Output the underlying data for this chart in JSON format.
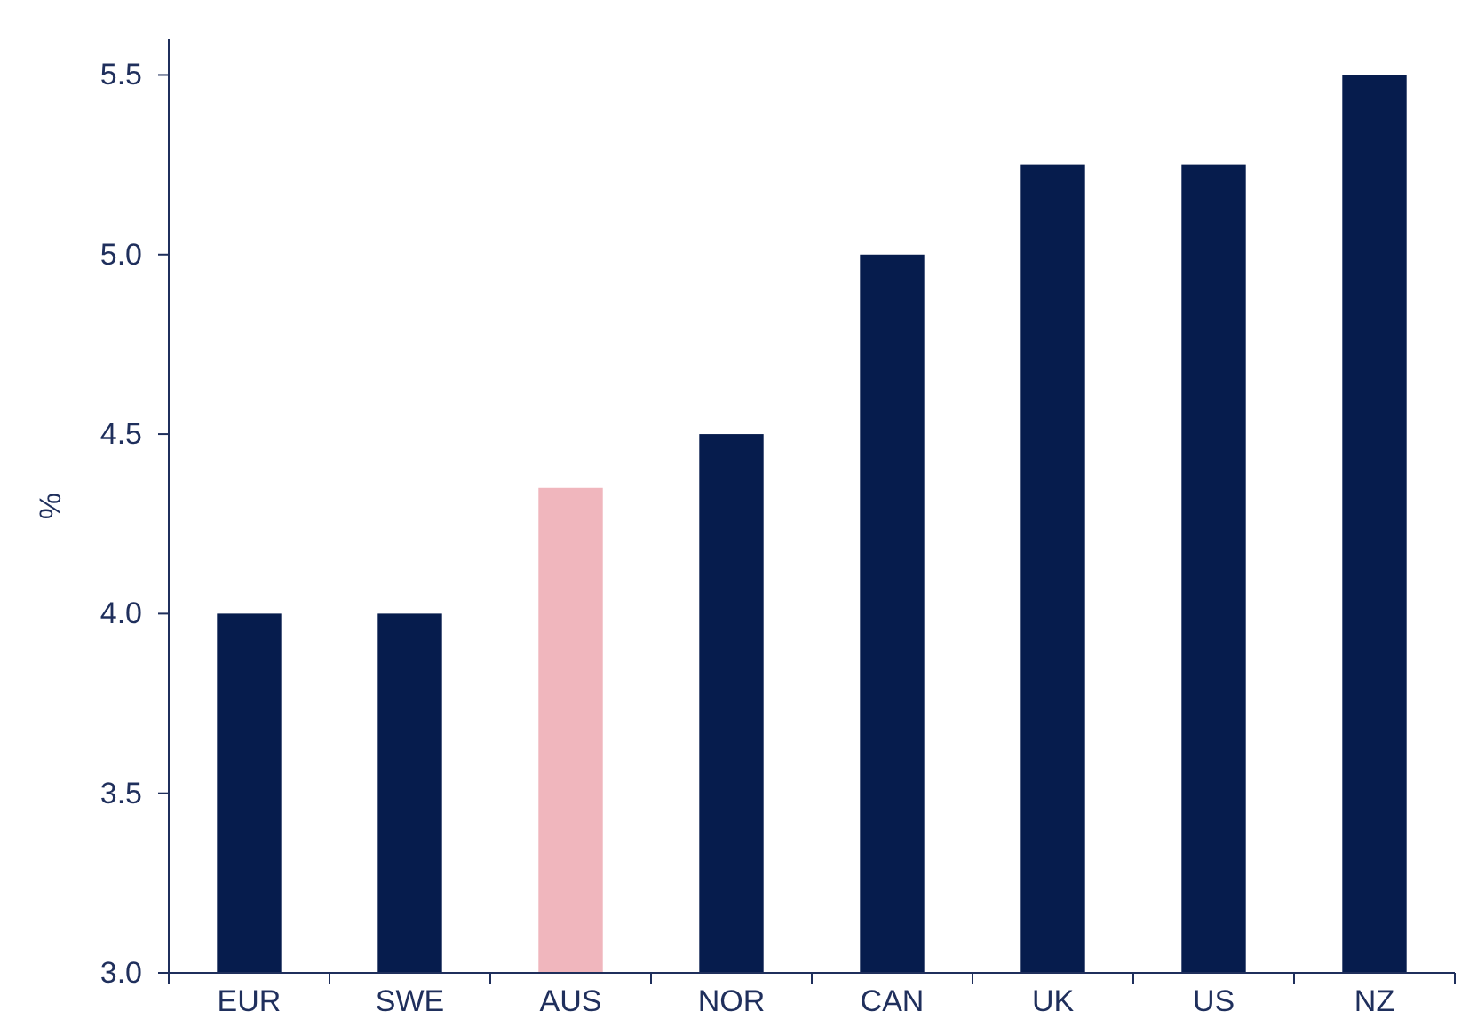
{
  "chart_data": {
    "type": "bar",
    "ylabel": "%",
    "categories": [
      "EUR",
      "SWE",
      "AUS",
      "NOR",
      "CAN",
      "UK",
      "US",
      "NZ"
    ],
    "values": [
      4.0,
      4.0,
      4.35,
      4.5,
      5.0,
      5.25,
      5.25,
      5.5
    ],
    "colors": [
      "#061c4d",
      "#061c4d",
      "#f0b6bd",
      "#061c4d",
      "#061c4d",
      "#061c4d",
      "#061c4d",
      "#061c4d"
    ],
    "ylim": [
      3.0,
      5.6
    ],
    "yticks": [
      {
        "value": 3.0,
        "label": "3.0"
      },
      {
        "value": 3.5,
        "label": "3.5"
      },
      {
        "value": 4.0,
        "label": "4.0"
      },
      {
        "value": 4.5,
        "label": "4.5"
      },
      {
        "value": 5.0,
        "label": "5.0"
      },
      {
        "value": 5.5,
        "label": "5.5"
      }
    ],
    "grid": false
  }
}
